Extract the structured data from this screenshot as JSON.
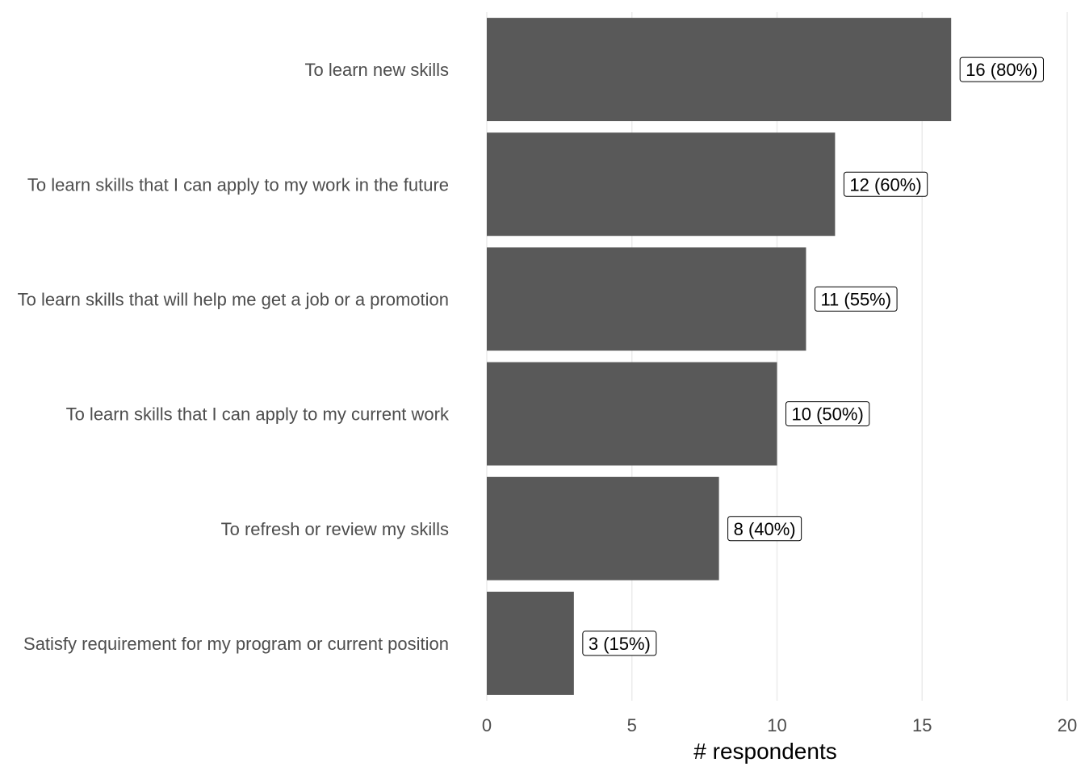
{
  "chart_data": {
    "type": "bar",
    "orientation": "horizontal",
    "title": "",
    "xlabel": "# respondents",
    "ylabel": "",
    "xlim": [
      0,
      20
    ],
    "x_ticks": [
      0,
      5,
      10,
      15,
      20
    ],
    "grid": "vertical major gridlines",
    "legend": "none",
    "colors": {
      "bar": "#595959",
      "grid": "#ebebeb",
      "label_border": "#000000"
    },
    "categories": [
      "To learn new skills",
      "To learn skills that I can apply to my work in the future",
      "To learn skills that will help me get a job or a promotion",
      "To learn skills that I can apply to my current work",
      "To refresh or review my skills",
      "Satisfy requirement for my program or current position"
    ],
    "values": [
      16,
      12,
      11,
      10,
      8,
      3
    ],
    "data_labels": [
      "16 (80%)",
      "12 (60%)",
      "11 (55%)",
      "10 (50%)",
      "8 (40%)",
      "3 (15%)"
    ]
  }
}
